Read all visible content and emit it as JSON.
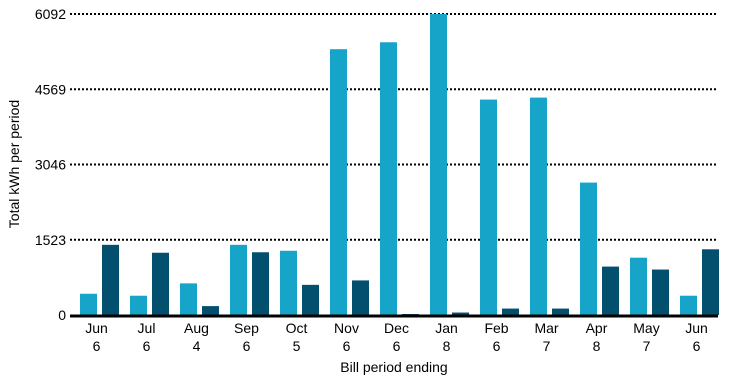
{
  "chart_data": {
    "type": "bar",
    "xlabel": "Bill period ending",
    "ylabel": "Total kWh per period",
    "ylim": [
      0,
      6092
    ],
    "yticks": [
      0,
      1523,
      3046,
      4569,
      6092
    ],
    "grid": "horizontal-dotted",
    "categories": [
      {
        "month": "Jun",
        "day": "6"
      },
      {
        "month": "Jul",
        "day": "6"
      },
      {
        "month": "Aug",
        "day": "4"
      },
      {
        "month": "Sep",
        "day": "6"
      },
      {
        "month": "Oct",
        "day": "5"
      },
      {
        "month": "Nov",
        "day": "6"
      },
      {
        "month": "Dec",
        "day": "6"
      },
      {
        "month": "Jan",
        "day": "8"
      },
      {
        "month": "Feb",
        "day": "6"
      },
      {
        "month": "Mar",
        "day": "7"
      },
      {
        "month": "Apr",
        "day": "8"
      },
      {
        "month": "May",
        "day": "7"
      },
      {
        "month": "Jun",
        "day": "6"
      }
    ],
    "series": [
      {
        "color": "#16a4c9",
        "values": [
          430,
          390,
          640,
          1420,
          1300,
          5380,
          5520,
          6092,
          4360,
          4400,
          2680,
          1160,
          390
        ]
      },
      {
        "color": "#03506e",
        "values": [
          1420,
          1260,
          180,
          1270,
          610,
          700,
          20,
          50,
          130,
          130,
          980,
          920,
          1330
        ]
      }
    ]
  }
}
